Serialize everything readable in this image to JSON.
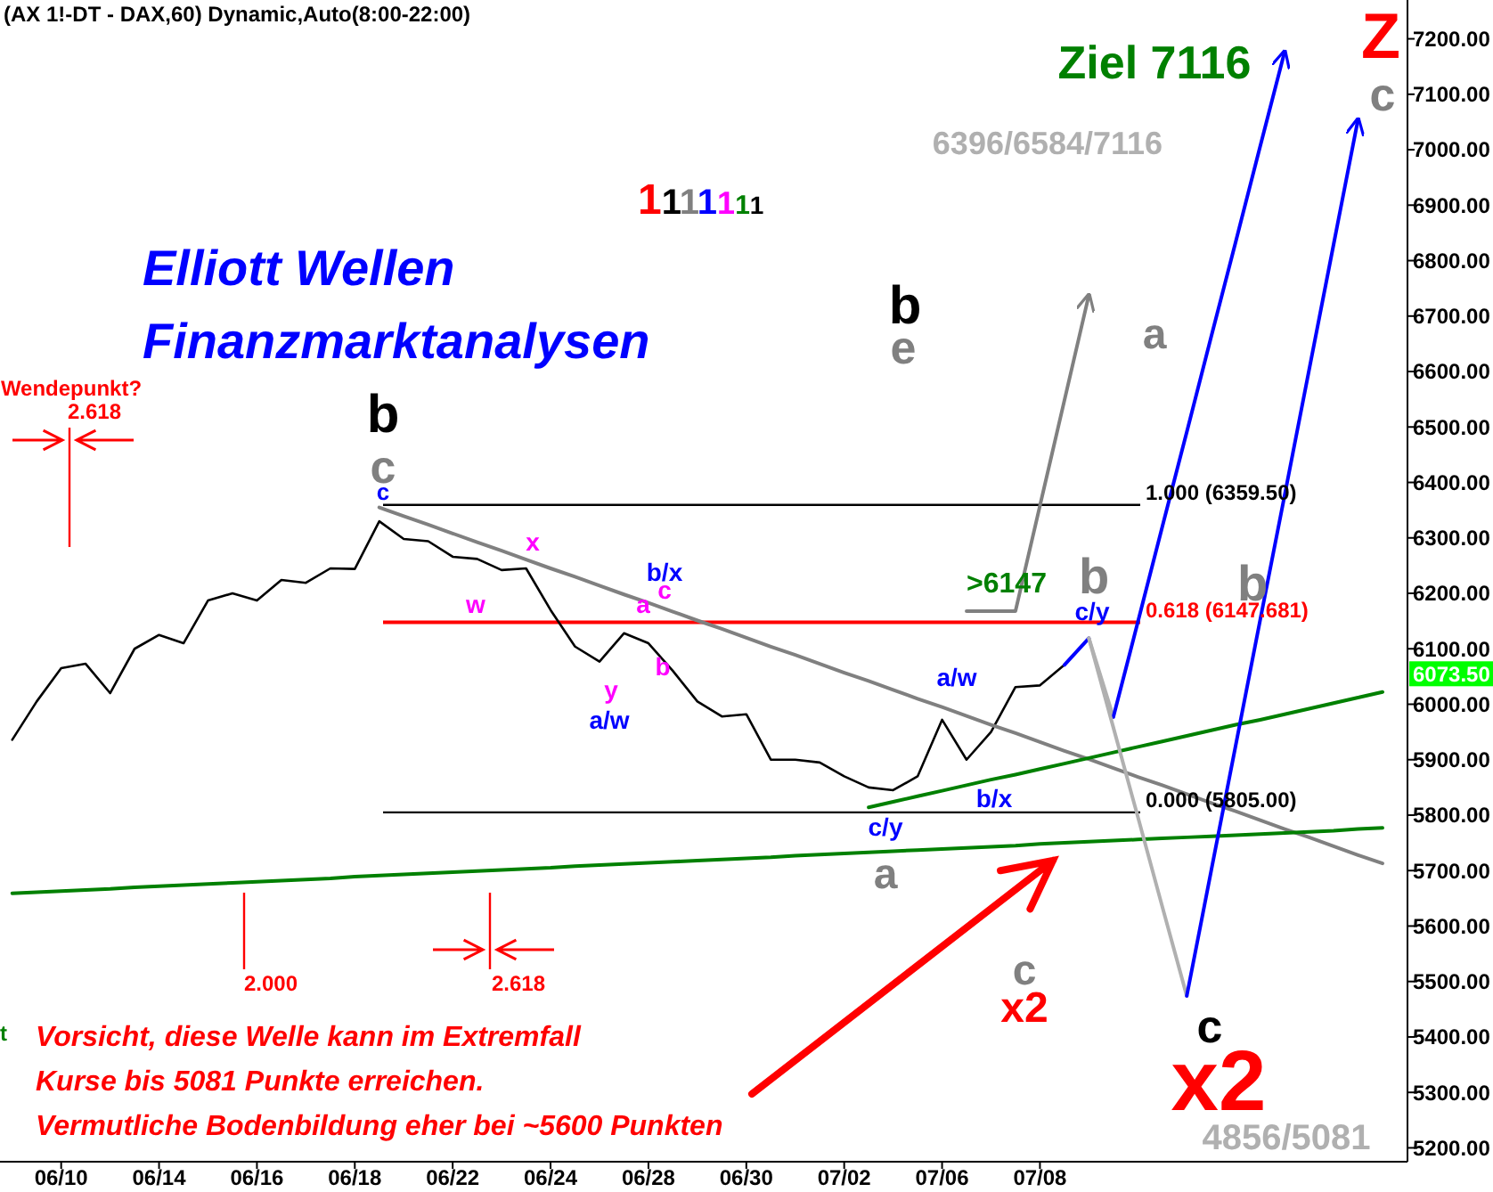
{
  "chart_data": {
    "type": "line",
    "title": "(AX 1!-DT - DAX,60) Dynamic,Auto(8:00-22:00)",
    "categories": [
      null,
      null,
      "06/10",
      null,
      null,
      null,
      "06/14",
      null,
      null,
      null,
      "06/16",
      null,
      null,
      null,
      "06/18",
      null,
      null,
      null,
      "06/22",
      null,
      null,
      null,
      "06/24",
      null,
      null,
      null,
      "06/28",
      null,
      null,
      null,
      "06/30",
      null,
      null,
      null,
      "07/02",
      null,
      null,
      null,
      "07/06",
      null,
      null,
      null,
      "07/08",
      null,
      null,
      null,
      null,
      null,
      null,
      null,
      null,
      null,
      null,
      null,
      null,
      null,
      null
    ],
    "ylim": [
      5175,
      7270
    ],
    "yticks": [
      {
        "value": 5200,
        "label": "5200.00"
      },
      {
        "value": 5300,
        "label": "5300.00"
      },
      {
        "value": 5400,
        "label": "5400.00"
      },
      {
        "value": 5500,
        "label": "5500.00"
      },
      {
        "value": 5600,
        "label": "5600.00"
      },
      {
        "value": 5700,
        "label": "5700.00"
      },
      {
        "value": 5800,
        "label": "5800.00"
      },
      {
        "value": 5900,
        "label": "5900.00"
      },
      {
        "value": 6000,
        "label": "6000.00"
      },
      {
        "value": 6100,
        "label": "6100.00"
      },
      {
        "value": 6200,
        "label": "6200.00"
      },
      {
        "value": 6300,
        "label": "6300.00"
      },
      {
        "value": 6400,
        "label": "6400.00"
      },
      {
        "value": 6500,
        "label": "6500.00"
      },
      {
        "value": 6600,
        "label": "6600.00"
      },
      {
        "value": 6700,
        "label": "6700.00"
      },
      {
        "value": 6800,
        "label": "6800.00"
      },
      {
        "value": 6900,
        "label": "6900.00"
      },
      {
        "value": 7000,
        "label": "7000.00"
      },
      {
        "value": 7100,
        "label": "7100.00"
      },
      {
        "value": 7200,
        "label": "7200.00"
      }
    ],
    "series": [
      {
        "color": "#000000",
        "values": [
          5936,
          6005,
          6065,
          6073,
          6020,
          6100,
          6125,
          6110,
          6187,
          6200,
          6187,
          6224,
          6219,
          6245,
          6244,
          6330,
          6298,
          6294,
          6266,
          6262,
          6242,
          6245,
          6170,
          6104,
          6077,
          6128,
          6110,
          6060,
          6005,
          5978,
          5982,
          5900,
          5900,
          5895,
          5870,
          5850,
          5845,
          5870,
          5972,
          5900,
          5950,
          6031,
          6034,
          6071,
          null,
          null,
          null,
          null,
          null,
          null,
          null,
          null,
          null,
          null,
          null,
          null,
          null
        ]
      },
      {
        "color": "#808080",
        "values": [
          null,
          null,
          null,
          null,
          null,
          null,
          null,
          null,
          null,
          null,
          null,
          null,
          null,
          null,
          null,
          6355,
          6339,
          6324,
          6308,
          6292,
          6277,
          6261,
          6245,
          6230,
          6214,
          6198,
          6183,
          6167,
          6151,
          6136,
          6120,
          6104,
          6089,
          6073,
          6057,
          6042,
          6026,
          6010,
          5995,
          5979,
          5963,
          5948,
          5932,
          5916,
          5901,
          5885,
          5869,
          5854,
          5838,
          5822,
          5807,
          5791,
          5775,
          5760,
          5744,
          5728,
          5713
        ]
      },
      {
        "color": "#008000",
        "values": [
          null,
          null,
          null,
          null,
          null,
          null,
          null,
          null,
          null,
          null,
          null,
          null,
          null,
          null,
          null,
          null,
          null,
          null,
          null,
          null,
          null,
          null,
          null,
          null,
          null,
          null,
          null,
          null,
          null,
          null,
          null,
          null,
          null,
          null,
          null,
          5814,
          5824,
          5834,
          5844,
          5854,
          5864,
          5873,
          5883,
          5893,
          5903,
          5913,
          5923,
          5933,
          5943,
          5953,
          5963,
          5972,
          5982,
          5992,
          6002,
          6012,
          6022
        ]
      },
      {
        "color": "#008000",
        "values": [
          5659,
          5661,
          5663,
          5665,
          5667,
          5670,
          5672,
          5674,
          5676,
          5678,
          5680,
          5682,
          5684,
          5686,
          5689,
          5691,
          5693,
          5695,
          5697,
          5699,
          5701,
          5703,
          5705,
          5708,
          5710,
          5712,
          5714,
          5716,
          5718,
          5720,
          5722,
          5724,
          5727,
          5729,
          5731,
          5733,
          5735,
          5737,
          5739,
          5741,
          5743,
          5745,
          5748,
          5750,
          5752,
          5754,
          5756,
          5758,
          5760,
          5762,
          5764,
          5766,
          5768,
          5770,
          5772,
          5775,
          5777
        ]
      },
      {
        "color": "#0000ff",
        "values": [
          null,
          null,
          null,
          null,
          null,
          null,
          null,
          null,
          null,
          null,
          null,
          null,
          null,
          null,
          null,
          null,
          null,
          null,
          null,
          null,
          null,
          null,
          null,
          null,
          null,
          null,
          null,
          null,
          null,
          null,
          null,
          null,
          null,
          null,
          null,
          null,
          null,
          null,
          null,
          null,
          null,
          null,
          null,
          6071,
          6119,
          null,
          null,
          null,
          null,
          null,
          null,
          null,
          null,
          null,
          null,
          null,
          null
        ]
      },
      {
        "color": "#b0b0b0",
        "values": [
          null,
          null,
          null,
          null,
          null,
          null,
          null,
          null,
          null,
          null,
          null,
          null,
          null,
          null,
          null,
          null,
          null,
          null,
          null,
          null,
          null,
          null,
          null,
          null,
          null,
          null,
          null,
          null,
          null,
          null,
          null,
          null,
          null,
          null,
          null,
          null,
          null,
          null,
          null,
          null,
          null,
          null,
          null,
          null,
          6119,
          5977,
          null,
          null,
          null,
          null,
          null,
          null,
          null,
          null,
          null,
          null,
          null
        ]
      },
      {
        "color": "#0000ff",
        "values": [
          null,
          null,
          null,
          null,
          null,
          null,
          null,
          null,
          null,
          null,
          null,
          null,
          null,
          null,
          null,
          null,
          null,
          null,
          null,
          null,
          null,
          null,
          null,
          null,
          null,
          null,
          null,
          null,
          null,
          null,
          null,
          null,
          null,
          null,
          null,
          null,
          null,
          null,
          null,
          null,
          null,
          null,
          null,
          null,
          null,
          5977,
          6148,
          6320,
          6491,
          6663,
          6834,
          7006,
          7177,
          null,
          null,
          null,
          null
        ]
      },
      {
        "color": "#b0b0b0",
        "values": [
          null,
          null,
          null,
          null,
          null,
          null,
          null,
          null,
          null,
          null,
          null,
          null,
          null,
          null,
          null,
          null,
          null,
          null,
          null,
          null,
          null,
          null,
          null,
          null,
          null,
          null,
          null,
          null,
          null,
          null,
          null,
          null,
          null,
          null,
          null,
          null,
          null,
          null,
          null,
          null,
          null,
          null,
          null,
          null,
          6119,
          5958,
          5797,
          5635,
          5474,
          null,
          null,
          null,
          null,
          null,
          null,
          null,
          null
        ]
      },
      {
        "color": "#0000ff",
        "values": [
          null,
          null,
          null,
          null,
          null,
          null,
          null,
          null,
          null,
          null,
          null,
          null,
          null,
          null,
          null,
          null,
          null,
          null,
          null,
          null,
          null,
          null,
          null,
          null,
          null,
          null,
          null,
          null,
          null,
          null,
          null,
          null,
          null,
          null,
          null,
          null,
          null,
          null,
          null,
          null,
          null,
          null,
          null,
          null,
          null,
          null,
          null,
          null,
          5474,
          5700,
          5926,
          6152,
          6377,
          6603,
          6829,
          7055,
          null
        ]
      },
      {
        "color": "#808080",
        "values": [
          null,
          null,
          null,
          null,
          null,
          null,
          null,
          null,
          null,
          null,
          null,
          null,
          null,
          null,
          null,
          null,
          null,
          null,
          null,
          null,
          null,
          null,
          null,
          null,
          null,
          null,
          null,
          null,
          null,
          null,
          null,
          null,
          null,
          null,
          null,
          null,
          null,
          null,
          null,
          6168,
          6168,
          6168,
          6358,
          6548,
          6738,
          null,
          null,
          null,
          null,
          null,
          null,
          null,
          null,
          null,
          null,
          null,
          null
        ]
      }
    ],
    "ref_lines": [
      {
        "axis": "y",
        "value": 6359.5,
        "label": "1.000 (6359.50)",
        "color": "#000000"
      },
      {
        "axis": "y",
        "value": 6147.681,
        "label": "0.618 (6147.681)",
        "color": "#ff0000"
      },
      {
        "axis": "y",
        "value": 5805,
        "label": "0.000 (5805.00)",
        "color": "#000000"
      }
    ],
    "annotations": [
      "Elliott Wellen",
      "Finanzmarktanalysen",
      "1111111",
      "Vorsicht, diese Welle kann im Extremfall",
      "Kurse bis 5081 Punkte erreichen.",
      "Vermutliche Bodenbildung eher bei ~5600 Punkten",
      "t",
      "b",
      "c",
      "c",
      "x",
      "w",
      "y",
      "a/w",
      "b/x",
      "a",
      "c",
      "b",
      "a/w",
      "b/x",
      "c/y",
      "a",
      ">6147",
      "b",
      "c/y",
      "b",
      "a",
      "b",
      "e",
      "Ziel 7116",
      "6396/6584/7116",
      "Z",
      "c",
      "c",
      "x2",
      "c",
      "x2",
      "4856/5081",
      "Wendepunkt?",
      "2.618",
      "2.000",
      "2.618",
      "6073.50"
    ]
  }
}
